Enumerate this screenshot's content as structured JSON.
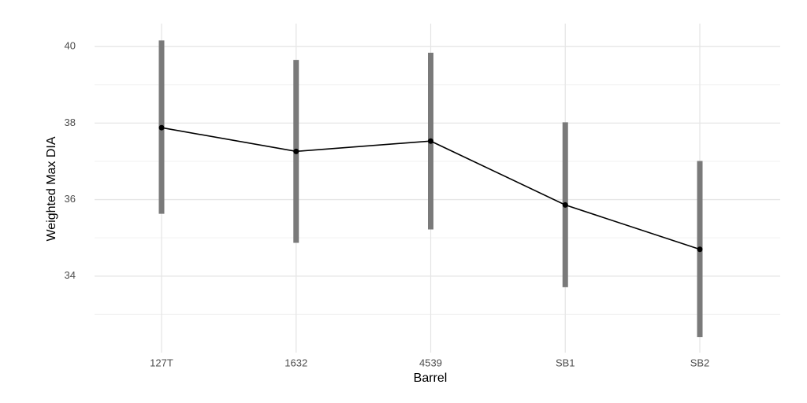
{
  "chart_data": {
    "type": "line-errorbar",
    "x_label": "Barrel",
    "y_label": "Weighted Max DIA",
    "categories": [
      "127T",
      "1632",
      "4539",
      "SB1",
      "SB2"
    ],
    "series": [
      {
        "color": "#000000",
        "error_color": "#7a7a7a",
        "values": [
          37.88,
          37.26,
          37.53,
          35.86,
          34.7
        ],
        "lower": [
          35.63,
          34.87,
          35.22,
          33.71,
          32.41
        ],
        "upper": [
          40.16,
          39.65,
          39.84,
          38.02,
          37.01
        ]
      }
    ],
    "ylim": [
      32,
      40.6
    ],
    "yticks": [
      34,
      36,
      38,
      40
    ],
    "y_minor_ticks": [
      33,
      35,
      37,
      39
    ],
    "grid": true
  }
}
